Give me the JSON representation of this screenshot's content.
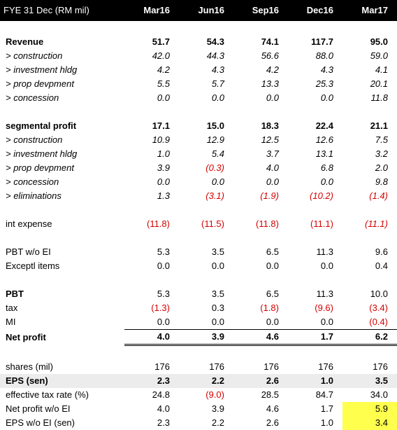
{
  "header": {
    "label": "FYE 31 Dec (RM mil)",
    "quarters": [
      "Mar16",
      "Jun16",
      "Sep16",
      "Dec16",
      "Mar17"
    ]
  },
  "rows": [
    {
      "type": "spacer"
    },
    {
      "type": "bold",
      "label": "Revenue",
      "values": [
        "51.7",
        "54.3",
        "74.1",
        "117.7",
        "95.0"
      ]
    },
    {
      "type": "ital",
      "label": "> construction",
      "values": [
        "42.0",
        "44.3",
        "56.6",
        "88.0",
        "59.0"
      ]
    },
    {
      "type": "ital",
      "label": "> investment hldg",
      "values": [
        "4.2",
        "4.3",
        "4.2",
        "4.3",
        "4.1"
      ]
    },
    {
      "type": "ital",
      "label": "> prop devpment",
      "values": [
        "5.5",
        "5.7",
        "13.3",
        "25.3",
        "20.1"
      ]
    },
    {
      "type": "ital",
      "label": "> concession",
      "values": [
        "0.0",
        "0.0",
        "0.0",
        "0.0",
        "11.8"
      ]
    },
    {
      "type": "spacer"
    },
    {
      "type": "bold",
      "label": "segmental profit",
      "values": [
        "17.1",
        "15.0",
        "18.3",
        "22.4",
        "21.1"
      ]
    },
    {
      "type": "ital",
      "label": "> construction",
      "values": [
        "10.9",
        "12.9",
        "12.5",
        "12.6",
        "7.5"
      ]
    },
    {
      "type": "ital",
      "label": "> investment hldg",
      "values": [
        "1.0",
        "5.4",
        "3.7",
        "13.1",
        "3.2"
      ]
    },
    {
      "type": "ital",
      "label": "> prop devpment",
      "values": [
        "3.9",
        "(0.3)",
        "4.0",
        "6.8",
        "2.0"
      ]
    },
    {
      "type": "ital",
      "label": "> concession",
      "values": [
        "0.0",
        "0.0",
        "0.0",
        "0.0",
        "9.8"
      ]
    },
    {
      "type": "ital",
      "label": "> eliminations",
      "values": [
        "1.3",
        "(3.1)",
        "(1.9)",
        "(10.2)",
        "(1.4)"
      ]
    },
    {
      "type": "spacer"
    },
    {
      "type": "mixed",
      "label": "int expense",
      "values": [
        "(11.8)",
        "(11.5)",
        "(11.8)",
        "(11.1)",
        "(11.1)"
      ],
      "italic_last": true
    },
    {
      "type": "spacer"
    },
    {
      "type": "plain",
      "label": "PBT w/o EI",
      "values": [
        "5.3",
        "3.5",
        "6.5",
        "11.3",
        "9.6"
      ]
    },
    {
      "type": "plain",
      "label": "Exceptl items",
      "values": [
        "0.0",
        "0.0",
        "0.0",
        "0.0",
        "0.4"
      ]
    },
    {
      "type": "spacer"
    },
    {
      "type": "pbt",
      "label": "PBT",
      "values": [
        "5.3",
        "3.5",
        "6.5",
        "11.3",
        "10.0"
      ]
    },
    {
      "type": "plain",
      "label": "tax",
      "values": [
        "(1.3)",
        "0.3",
        "(1.8)",
        "(9.6)",
        "(3.4)"
      ]
    },
    {
      "type": "plain",
      "label": "MI",
      "values": [
        "0.0",
        "0.0",
        "0.0",
        "0.0",
        "(0.4)"
      ]
    },
    {
      "type": "net",
      "label": "Net profit",
      "values": [
        "4.0",
        "3.9",
        "4.6",
        "1.7",
        "6.2"
      ]
    },
    {
      "type": "spacer"
    },
    {
      "type": "plain",
      "label": "shares (mil)",
      "values": [
        "176",
        "176",
        "176",
        "176",
        "176"
      ]
    },
    {
      "type": "shade",
      "label": "EPS (sen)",
      "values": [
        "2.3",
        "2.2",
        "2.6",
        "1.0",
        "3.5"
      ]
    },
    {
      "type": "plain",
      "label": "effective tax rate (%)",
      "values": [
        "24.8",
        "(9.0)",
        "28.5",
        "84.7",
        "34.0"
      ]
    },
    {
      "type": "plain",
      "label": "Net profit w/o EI",
      "values": [
        "4.0",
        "3.9",
        "4.6",
        "1.7",
        "5.9"
      ],
      "highlight_last": true
    },
    {
      "type": "plain",
      "label": "EPS w/o EI (sen)",
      "values": [
        "2.3",
        "2.2",
        "2.6",
        "1.0",
        "3.4"
      ],
      "highlight_last": true
    }
  ],
  "colors": {
    "header_bg": "#000000",
    "negative": "#d40000",
    "highlight": "#ffff4d",
    "shade": "#ececec"
  }
}
